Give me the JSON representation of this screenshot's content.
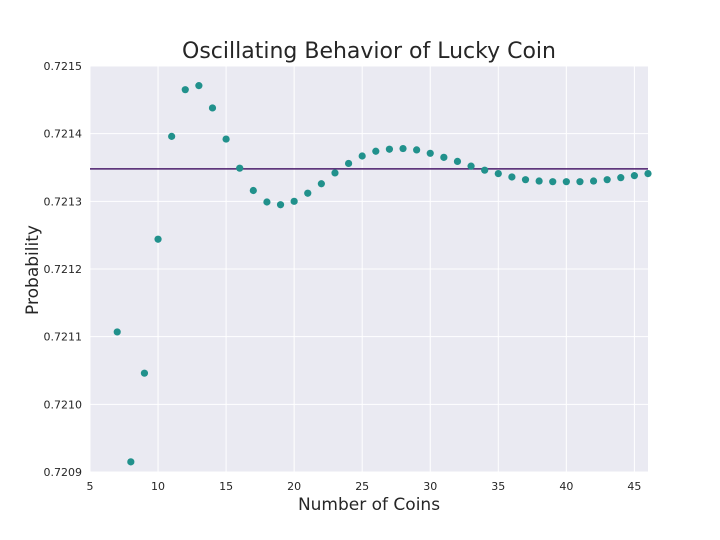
{
  "chart_data": {
    "type": "scatter",
    "title": "Oscillating Behavior of Lucky Coin",
    "xlabel": "Number of Coins",
    "ylabel": "Probability",
    "xlim": [
      5,
      46
    ],
    "ylim": [
      0.7209,
      0.7215
    ],
    "xticks": [
      5,
      10,
      15,
      20,
      25,
      30,
      35,
      40,
      45
    ],
    "xtick_labels": [
      "5",
      "10",
      "15",
      "20",
      "25",
      "30",
      "35",
      "40",
      "45"
    ],
    "yticks": [
      0.7209,
      0.721,
      0.7211,
      0.7212,
      0.7213,
      0.7214,
      0.7215
    ],
    "ytick_labels": [
      "0.7209",
      "0.7210",
      "0.7211",
      "0.7212",
      "0.7213",
      "0.7214",
      "0.7215"
    ],
    "grid": true,
    "background_color": "#eaeaf2",
    "point_color": "#21918c",
    "reference_line": {
      "y": 0.721348,
      "color": "#4b1d6b"
    },
    "series": [
      {
        "x": [
          7,
          8,
          9,
          10,
          11,
          12,
          13,
          14,
          15,
          16,
          17,
          18,
          19,
          20,
          21,
          22,
          23,
          24,
          25,
          26,
          27,
          28,
          29,
          30,
          31,
          32,
          33,
          34,
          35,
          36,
          37,
          38,
          39,
          40,
          41,
          42,
          43,
          44,
          45,
          46
        ],
        "y": [
          0.721107,
          0.720915,
          0.721046,
          0.721244,
          0.721396,
          0.721465,
          0.721471,
          0.721438,
          0.721392,
          0.721349,
          0.721316,
          0.721299,
          0.721295,
          0.7213,
          0.721312,
          0.721326,
          0.721342,
          0.721356,
          0.721367,
          0.721374,
          0.721377,
          0.721378,
          0.721376,
          0.721371,
          0.721365,
          0.721359,
          0.721352,
          0.721346,
          0.721341,
          0.721336,
          0.721332,
          0.72133,
          0.721329,
          0.721329,
          0.721329,
          0.72133,
          0.721332,
          0.721335,
          0.721338,
          0.721341
        ]
      }
    ]
  }
}
